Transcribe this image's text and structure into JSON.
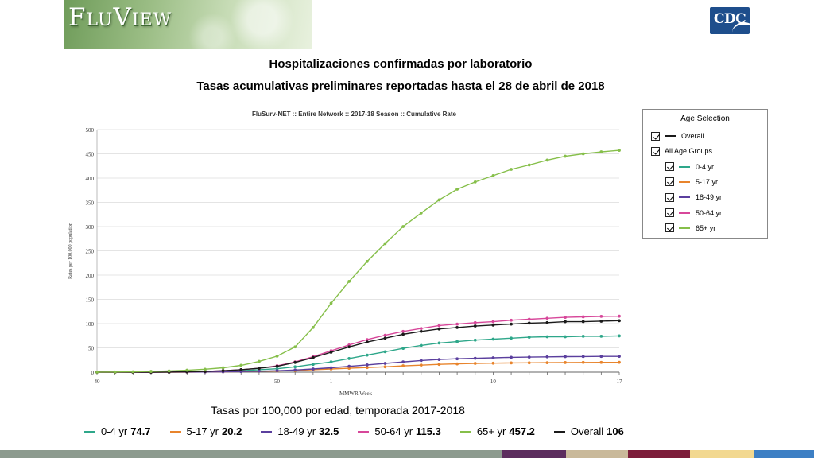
{
  "header": {
    "banner_text": "FluView",
    "logo_text": "CDC"
  },
  "titles": {
    "line1": "Hospitalizaciones confirmadas por  laboratorio",
    "line2": "Tasas acumulativas preliminares reportadas hasta el 28 de abril de 2018"
  },
  "colors": {
    "overall": "#1a1a1a",
    "age_0_4": "#2ea78a",
    "age_5_17": "#e8842c",
    "age_18_49": "#5b3f9e",
    "age_50_64": "#d7479a",
    "age_65": "#86bf4a"
  },
  "chart_data": {
    "type": "line",
    "title": "FluSurv-NET :: Entire Network :: 2017-18 Season :: Cumulative Rate",
    "xlabel": "MMWR Week",
    "ylabel": "Rates per 100,000 population",
    "ylim": [
      0,
      500
    ],
    "yticks": [
      0,
      50,
      100,
      150,
      200,
      250,
      300,
      350,
      400,
      450,
      500
    ],
    "xticks": [
      {
        "i": 0,
        "label": "40"
      },
      {
        "i": 10,
        "label": "50"
      },
      {
        "i": 13,
        "label": "1"
      },
      {
        "i": 22,
        "label": "10"
      },
      {
        "i": 29,
        "label": "17"
      }
    ],
    "grid": "horizontal",
    "legend_position": "right",
    "series": [
      {
        "name": "Overall",
        "color": "#1a1a1a",
        "values": [
          0,
          0,
          0,
          0,
          0.3,
          0.7,
          1.5,
          3,
          5,
          8,
          12,
          20,
          30,
          41,
          52,
          62,
          70,
          78,
          84,
          89,
          92,
          95,
          97,
          99,
          101,
          102,
          104,
          104,
          105,
          106
        ]
      },
      {
        "name": "0-4 yr",
        "color": "#2ea78a",
        "values": [
          0,
          0,
          0,
          0,
          0.2,
          0.5,
          1,
          2,
          3,
          5,
          7,
          11,
          16,
          21,
          28,
          35,
          42,
          49,
          55,
          60,
          63,
          66,
          68,
          70,
          72,
          73,
          73,
          74,
          74,
          74.7
        ]
      },
      {
        "name": "5-17 yr",
        "color": "#e8842c",
        "values": [
          0,
          0,
          0,
          0,
          0,
          0.2,
          0.4,
          0.8,
          1.2,
          1.8,
          2.5,
          3.5,
          5,
          6.5,
          8,
          9.5,
          11,
          13,
          14.5,
          16,
          17,
          18,
          18.5,
          19,
          19.2,
          19.5,
          19.8,
          20,
          20.1,
          20.2
        ]
      },
      {
        "name": "18-49 yr",
        "color": "#5b3f9e",
        "values": [
          0,
          0,
          0,
          0,
          0.1,
          0.2,
          0.4,
          0.8,
          1.2,
          2,
          3,
          4.5,
          6.5,
          9,
          12,
          15,
          18,
          21,
          24,
          26,
          27.5,
          28.5,
          29.5,
          30.5,
          31,
          31.5,
          32,
          32.2,
          32.4,
          32.5
        ]
      },
      {
        "name": "50-64 yr",
        "color": "#d7479a",
        "values": [
          0,
          0,
          0,
          0,
          0.3,
          0.7,
          1.5,
          3,
          5,
          8,
          13,
          21,
          32,
          44,
          56,
          67,
          76,
          84,
          90,
          96,
          99,
          102,
          104,
          107,
          109,
          111,
          113,
          114,
          115,
          115.3
        ]
      },
      {
        "name": "65+ yr",
        "color": "#86bf4a",
        "values": [
          0,
          0.3,
          0.8,
          1.5,
          2.5,
          4,
          6,
          9,
          14,
          22,
          33,
          52,
          92,
          142,
          187,
          228,
          265,
          300,
          328,
          355,
          377,
          392,
          405,
          418,
          427,
          437,
          445,
          450,
          454,
          457.2
        ]
      }
    ]
  },
  "legend_panel": {
    "title": "Age Selection",
    "items": [
      {
        "label": "Overall",
        "color": "#1a1a1a",
        "indent": false,
        "swatch": true
      },
      {
        "label": "All Age Groups",
        "color": "",
        "indent": false,
        "swatch": false
      },
      {
        "label": "0-4 yr",
        "color": "#2ea78a",
        "indent": true,
        "swatch": true
      },
      {
        "label": "5-17 yr",
        "color": "#e8842c",
        "indent": true,
        "swatch": true
      },
      {
        "label": "18-49 yr",
        "color": "#5b3f9e",
        "indent": true,
        "swatch": true
      },
      {
        "label": "50-64 yr",
        "color": "#d7479a",
        "indent": true,
        "swatch": true
      },
      {
        "label": "65+ yr",
        "color": "#86bf4a",
        "indent": true,
        "swatch": true
      }
    ]
  },
  "caption": "Tasas por 100,000 por edad, temporada 2017-2018",
  "summary_legend": [
    {
      "label": "0-4 yr",
      "value": "74.7",
      "color": "#2ea78a"
    },
    {
      "label": "5-17 yr",
      "value": "20.2",
      "color": "#e8842c"
    },
    {
      "label": "18-49 yr",
      "value": "32.5",
      "color": "#5b3f9e"
    },
    {
      "label": "50-64 yr",
      "value": "115.3",
      "color": "#d7479a"
    },
    {
      "label": "65+ yr",
      "value": "457.2",
      "color": "#86bf4a"
    },
    {
      "label": "Overall",
      "value": "106",
      "color": "#1a1a1a"
    }
  ],
  "footer_colors": [
    "#8c9a8e",
    "#8c9a8e",
    "#8c9a8e",
    "#5c2d5e",
    "#c9b99a",
    "#7c1d3a",
    "#f2d890",
    "#3d7fc4"
  ]
}
